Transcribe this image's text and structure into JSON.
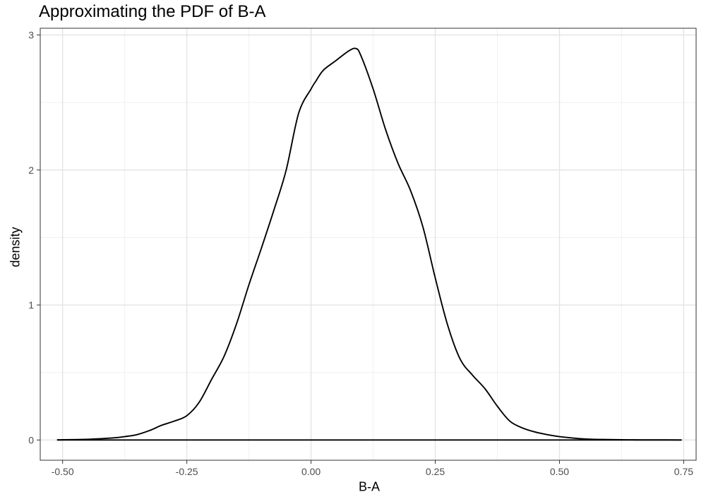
{
  "chart_data": {
    "type": "line",
    "title": "Approximating the PDF of B-A",
    "xlabel": "B-A",
    "ylabel": "density",
    "xlim": [
      -0.545,
      0.775
    ],
    "ylim": [
      -0.15,
      3.05
    ],
    "x_ticks": [
      -0.5,
      -0.25,
      0.0,
      0.25,
      0.5,
      0.75
    ],
    "x_tick_labels": [
      "-0.50",
      "-0.25",
      "0.00",
      "0.25",
      "0.50",
      "0.75"
    ],
    "y_ticks": [
      0,
      1,
      2,
      3
    ],
    "y_tick_labels": [
      "0",
      "1",
      "2",
      "3"
    ],
    "grid": true,
    "theme": "bw",
    "line_color": "#000000",
    "series": [
      {
        "x": [
          -0.51,
          -0.45,
          -0.4,
          -0.375,
          -0.35,
          -0.325,
          -0.3,
          -0.275,
          -0.25,
          -0.225,
          -0.2,
          -0.175,
          -0.15,
          -0.125,
          -0.1,
          -0.075,
          -0.05,
          -0.025,
          0.0,
          0.01,
          0.025,
          0.05,
          0.075,
          0.09,
          0.1,
          0.125,
          0.15,
          0.175,
          0.2,
          0.225,
          0.25,
          0.275,
          0.3,
          0.325,
          0.35,
          0.375,
          0.4,
          0.425,
          0.45,
          0.475,
          0.5,
          0.55,
          0.6,
          0.65,
          0.7,
          0.745
        ],
        "y": [
          0.001,
          0.005,
          0.015,
          0.025,
          0.04,
          0.07,
          0.11,
          0.14,
          0.18,
          0.28,
          0.45,
          0.62,
          0.86,
          1.15,
          1.42,
          1.7,
          2.0,
          2.42,
          2.6,
          2.66,
          2.74,
          2.81,
          2.88,
          2.9,
          2.85,
          2.6,
          2.3,
          2.05,
          1.85,
          1.58,
          1.2,
          0.85,
          0.6,
          0.48,
          0.38,
          0.25,
          0.14,
          0.09,
          0.06,
          0.04,
          0.025,
          0.008,
          0.003,
          0.001,
          0.0005,
          0.0002
        ]
      },
      {
        "x": [
          -0.51,
          0.745
        ],
        "y": [
          0,
          0
        ]
      }
    ]
  }
}
